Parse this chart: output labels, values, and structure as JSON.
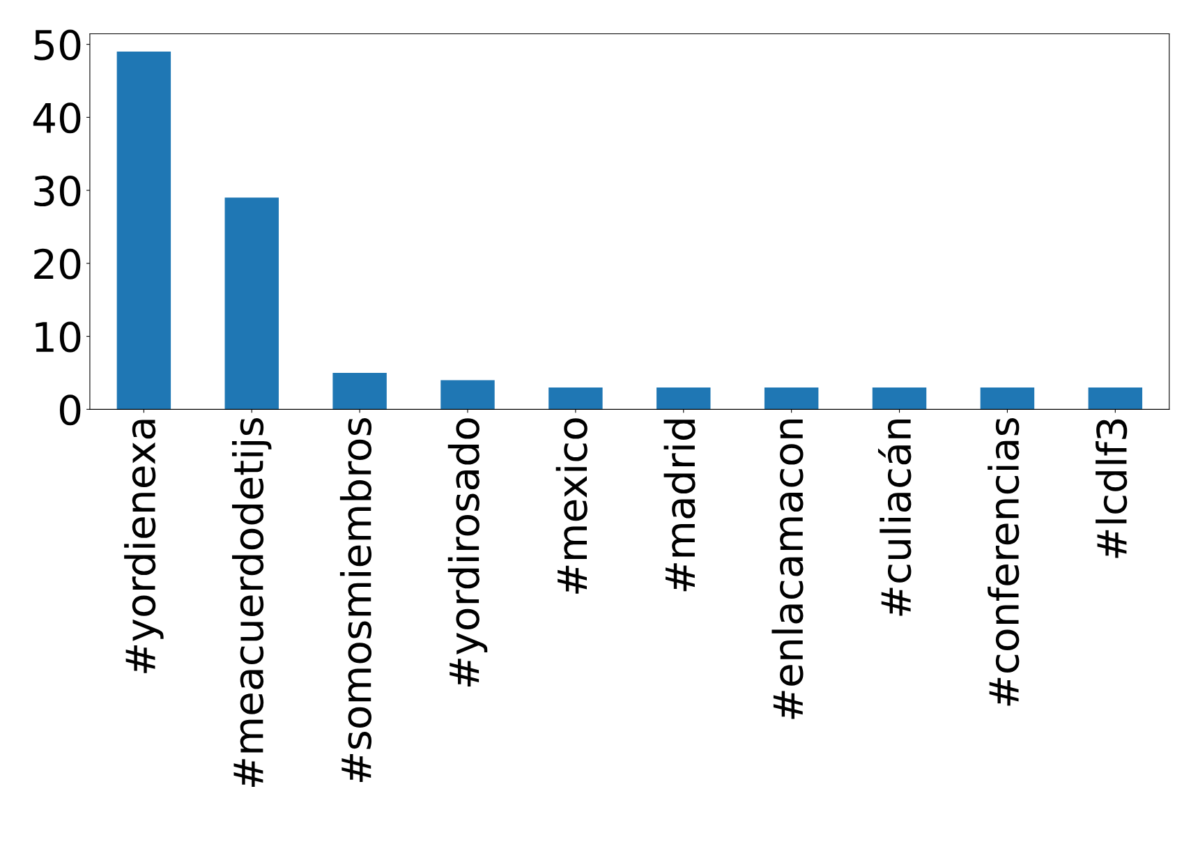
{
  "chart_data": {
    "type": "bar",
    "categories": [
      "#yordienexa",
      "#meacuerdodetijs",
      "#somosmiembros",
      "#yordirosado",
      "#mexico",
      "#madrid",
      "#enlacamacon",
      "#culiacán",
      "#conferencias",
      "#lcdlf3"
    ],
    "values": [
      49,
      29,
      5,
      4,
      3,
      3,
      3,
      3,
      3,
      3
    ],
    "color": "#1f77b4",
    "ylim": [
      0,
      51.45
    ],
    "yticks": [
      0,
      10,
      20,
      30,
      40,
      50
    ],
    "grid": false
  }
}
